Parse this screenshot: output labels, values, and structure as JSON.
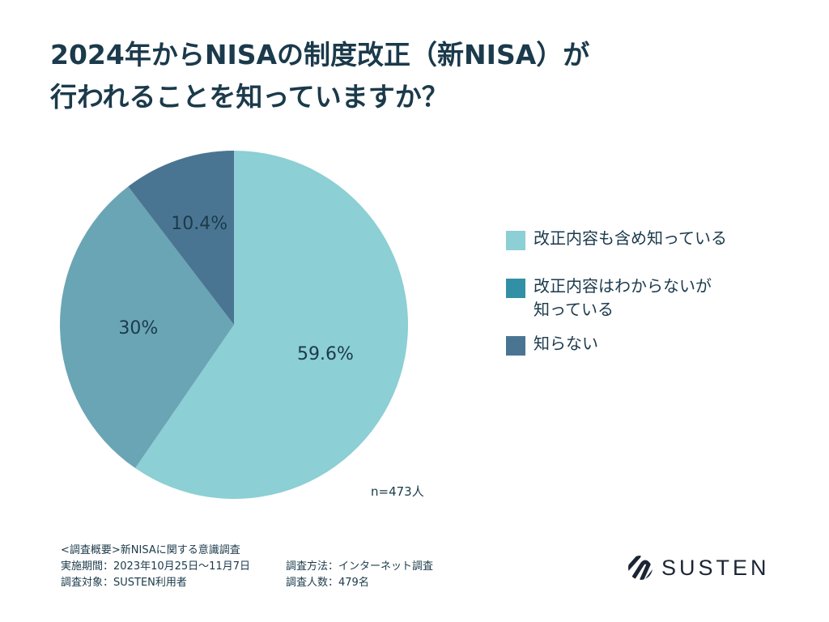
{
  "title_lines": [
    "2024年からNISAの制度改正（新NISA）が",
    "行われることを知っていますか？"
  ],
  "chart_data": {
    "type": "pie",
    "title": "2024年からNISAの制度改正（新NISA）が行われることを知っていますか？",
    "start": "top",
    "direction": "clockwise",
    "legend_placement": "right",
    "slices": [
      {
        "name": "改正内容も含め知っている",
        "value": 59.6,
        "label": "59.6%",
        "color": "#8ccfd4",
        "legend_color": "#8ccfd4"
      },
      {
        "name": "改正内容はわからないが\n知っている",
        "value": 30,
        "label": "30%",
        "color": "#6aa5b5",
        "legend_color": "#3190a6"
      },
      {
        "name": "知らない",
        "value": 10.4,
        "label": "10.4%",
        "color": "#4a7592",
        "legend_color": "#4a7592"
      }
    ],
    "annotation": "n=473人"
  },
  "notes": {
    "overview": "<調査概要>新NISAに関する意識調査",
    "period": "実施期間：2023年10月25日〜11月7日",
    "method": "調査方法：インターネット調査",
    "target": "調査対象：SUSTEN利用者",
    "count": "調査人数：479名"
  },
  "logo": {
    "text": "SUSTEN"
  }
}
